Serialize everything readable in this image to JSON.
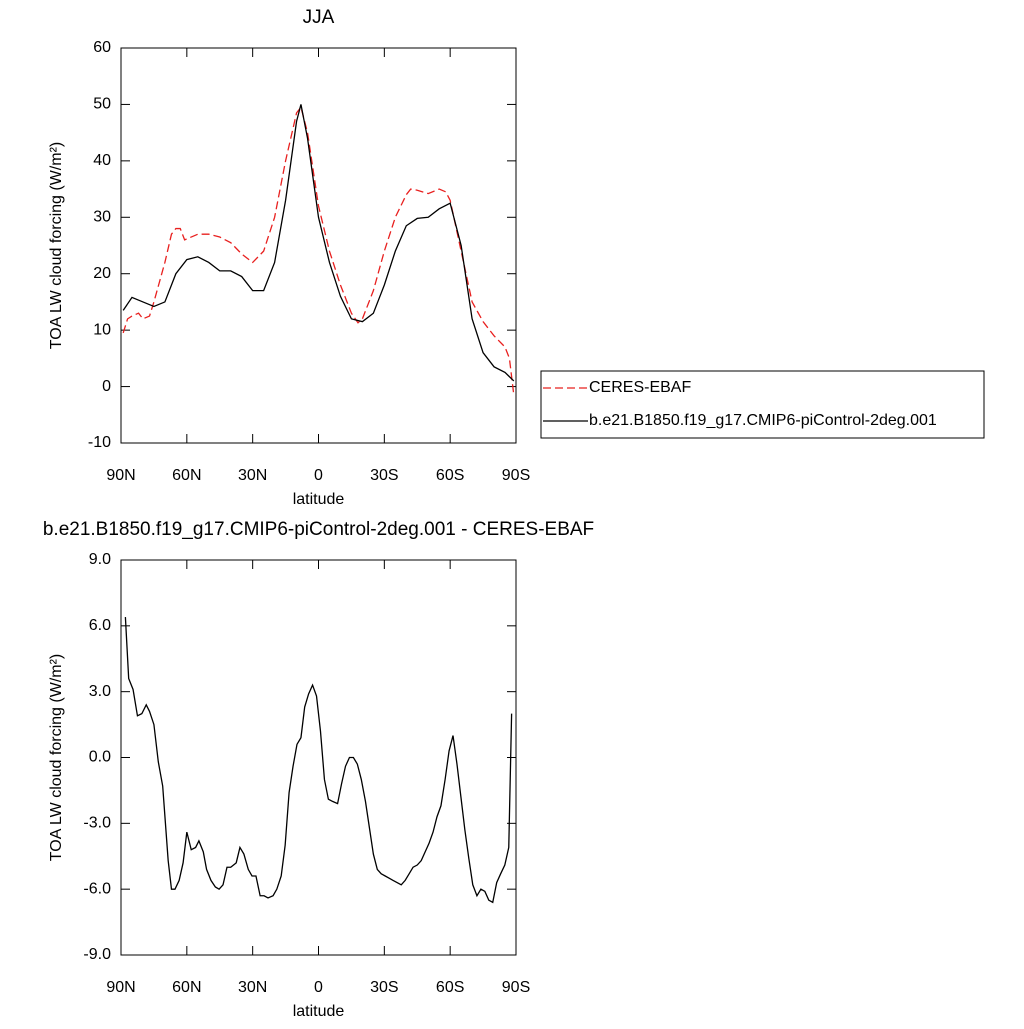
{
  "chart_data": [
    {
      "type": "line",
      "title": "JJA",
      "xlabel": "latitude",
      "ylabel": "TOA LW cloud forcing (W/m²)",
      "xlim": [
        90,
        -90
      ],
      "ylim": [
        -10,
        60
      ],
      "xticks": [
        {
          "value": 90,
          "label": "90N"
        },
        {
          "value": 60,
          "label": "60N"
        },
        {
          "value": 30,
          "label": "30N"
        },
        0,
        {
          "value": -30,
          "label": "30S"
        },
        {
          "value": -60,
          "label": "60S"
        },
        {
          "value": -90,
          "label": "90S"
        }
      ],
      "yticks": [
        -10,
        0,
        10,
        20,
        30,
        40,
        50,
        60
      ],
      "legend": "outside-right",
      "series": [
        {
          "name": "CERES-EBAF",
          "color": "#e8201f",
          "dash": true,
          "x": [
            89,
            87,
            85,
            82,
            80,
            77,
            75,
            70,
            67,
            65,
            63,
            61,
            55,
            50,
            45,
            40,
            35,
            30,
            25,
            20,
            15,
            10,
            8,
            5,
            0,
            -5,
            -10,
            -15,
            -18,
            -20,
            -25,
            -30,
            -35,
            -40,
            -42,
            -45,
            -50,
            -55,
            -58,
            -60,
            -65,
            -70,
            -75,
            -80,
            -85,
            -87,
            -89
          ],
          "values": [
            9.5,
            12,
            12.5,
            13,
            12,
            12.5,
            15,
            22,
            27,
            28,
            28,
            26,
            27,
            27,
            26.5,
            25.5,
            23.5,
            22,
            24,
            30,
            40,
            48.5,
            49.5,
            45,
            32,
            24,
            18,
            13,
            11.3,
            12,
            17,
            24,
            30,
            34,
            35,
            34.8,
            34.2,
            35,
            34.5,
            33,
            24,
            15,
            11.5,
            9,
            7,
            5,
            -1.5
          ]
        },
        {
          "name": "b.e21.B1850.f19_g17.CMIP6-piControl-2deg.001",
          "color": "#000000",
          "dash": false,
          "x": [
            89,
            85,
            80,
            75,
            70,
            65,
            60,
            55,
            50,
            45,
            40,
            35,
            30,
            25,
            20,
            15,
            10,
            8,
            5,
            0,
            -5,
            -10,
            -15,
            -20,
            -25,
            -30,
            -35,
            -40,
            -45,
            -50,
            -55,
            -60,
            -65,
            -70,
            -75,
            -80,
            -85,
            -89
          ],
          "values": [
            13.5,
            15.8,
            15,
            14.2,
            15,
            20,
            22.5,
            23,
            22,
            20.5,
            20.5,
            19.5,
            17,
            17,
            22,
            33,
            47,
            50,
            44,
            30,
            22,
            16,
            12,
            11.5,
            13,
            18,
            24,
            28.5,
            29.8,
            30,
            31.5,
            32.5,
            25,
            12,
            6,
            3.5,
            2.5,
            1
          ]
        }
      ]
    },
    {
      "type": "line",
      "title": "b.e21.B1850.f19_g17.CMIP6-piControl-2deg.001 - CERES-EBAF",
      "xlabel": "latitude",
      "ylabel": "TOA LW cloud forcing (W/m²)",
      "xlim": [
        90,
        -90
      ],
      "ylim": [
        -9,
        9
      ],
      "xticks": [
        {
          "value": 90,
          "label": "90N"
        },
        {
          "value": 60,
          "label": "60N"
        },
        {
          "value": 30,
          "label": "30N"
        },
        0,
        {
          "value": -30,
          "label": "30S"
        },
        {
          "value": -60,
          "label": "60S"
        },
        {
          "value": -90,
          "label": "90S"
        }
      ],
      "yticks": [
        {
          "value": -9,
          "label": "-9.0"
        },
        {
          "value": -6,
          "label": "-6.0"
        },
        {
          "value": -3,
          "label": "-3.0"
        },
        {
          "value": 0,
          "label": "0.0"
        },
        {
          "value": 3,
          "label": "3.0"
        },
        {
          "value": 6,
          "label": "6.0"
        },
        {
          "value": 9,
          "label": "9.0"
        }
      ],
      "series": [
        {
          "color": "#000000",
          "dash": false,
          "x": [
            88,
            86.5,
            84.5,
            82.5,
            80.5,
            78.5,
            77,
            75,
            73,
            71,
            68.5,
            67,
            65.4,
            63.5,
            61.7,
            60,
            58,
            56,
            54.5,
            52.5,
            51,
            49,
            47,
            45.3,
            43.5,
            41.7,
            40,
            37.5,
            35.8,
            34,
            32,
            30.3,
            28.5,
            26.6,
            24.8,
            23,
            20.7,
            19,
            17,
            15.2,
            13.4,
            11.6,
            9.8,
            8,
            6.3,
            4.5,
            2.7,
            0.9,
            -0.9,
            -2.7,
            -4.5,
            -6.4,
            -8.7,
            -10.5,
            -12.3,
            -14.1,
            -15.9,
            -17.7,
            -19.5,
            -21.4,
            -23.2,
            -25,
            -26.8,
            -28.6,
            -30.4,
            -32.2,
            -34,
            -35.8,
            -37.7,
            -39.5,
            -41.3,
            -43.1,
            -45,
            -46.8,
            -48.6,
            -50.4,
            -52.2,
            -54,
            -55.8,
            -57.7,
            -59.5,
            -61.3,
            -63.1,
            -64.9,
            -66.7,
            -68.5,
            -70.3,
            -72.2,
            -74,
            -75.8,
            -77.6,
            -79.4,
            -81.2,
            -83,
            -84.9,
            -86.7,
            -88
          ],
          "values": [
            6.4,
            3.6,
            3.1,
            1.9,
            2.0,
            2.4,
            2.1,
            1.5,
            -0.2,
            -1.3,
            -4.7,
            -6.0,
            -6.0,
            -5.6,
            -4.8,
            -3.4,
            -4.2,
            -4.1,
            -3.8,
            -4.3,
            -5.1,
            -5.6,
            -5.9,
            -6.0,
            -5.8,
            -5.0,
            -5.0,
            -4.8,
            -4.1,
            -4.4,
            -5.1,
            -5.4,
            -5.4,
            -6.3,
            -6.3,
            -6.4,
            -6.3,
            -6.0,
            -5.4,
            -4.0,
            -1.6,
            -0.4,
            0.6,
            0.9,
            2.3,
            2.9,
            3.3,
            2.8,
            1.2,
            -1.0,
            -1.9,
            -2.0,
            -2.1,
            -1.2,
            -0.4,
            0,
            0,
            -0.3,
            -1.0,
            -2.0,
            -3.2,
            -4.4,
            -5.1,
            -5.3,
            -5.4,
            -5.5,
            -5.6,
            -5.7,
            -5.8,
            -5.6,
            -5.3,
            -5.0,
            -4.9,
            -4.7,
            -4.3,
            -3.9,
            -3.4,
            -2.7,
            -2.2,
            -1.0,
            0.3,
            1.0,
            -0.3,
            -1.8,
            -3.3,
            -4.6,
            -5.8,
            -6.3,
            -6.0,
            -6.1,
            -6.5,
            -6.6,
            -5.7,
            -5.3,
            -4.9,
            -4.1,
            2.0
          ]
        }
      ]
    }
  ]
}
